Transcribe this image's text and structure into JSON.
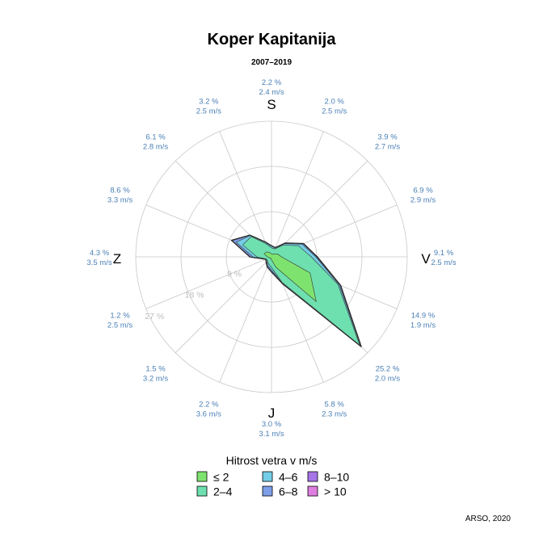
{
  "chart_data": {
    "type": "wind-rose",
    "title": "Koper Kapitanija",
    "subtitle": "2007–2019",
    "cardinals": {
      "north": "S",
      "east": "V",
      "south": "J",
      "west": "Z"
    },
    "ring_labels": [
      "9 %",
      "18 %",
      "27 %"
    ],
    "rings": [
      9,
      18,
      27
    ],
    "max": 27,
    "directions": [
      {
        "angle": 0,
        "freq": 2.2,
        "speed": 2.4,
        "pct": "2.2 %",
        "spd": "2.4 m/s"
      },
      {
        "angle": 22.5,
        "freq": 2.0,
        "speed": 2.5,
        "pct": "2.0 %",
        "spd": "2.5 m/s"
      },
      {
        "angle": 45,
        "freq": 3.9,
        "speed": 2.7,
        "pct": "3.9 %",
        "spd": "2.7 m/s"
      },
      {
        "angle": 67.5,
        "freq": 6.9,
        "speed": 2.9,
        "pct": "6.9 %",
        "spd": "2.9 m/s"
      },
      {
        "angle": 90,
        "freq": 9.1,
        "speed": 2.5,
        "pct": "9.1 %",
        "spd": "2.5 m/s"
      },
      {
        "angle": 112.5,
        "freq": 14.9,
        "speed": 1.9,
        "pct": "14.9 %",
        "spd": "1.9 m/s"
      },
      {
        "angle": 135,
        "freq": 25.2,
        "speed": 2.0,
        "pct": "25.2 %",
        "spd": "2.0 m/s"
      },
      {
        "angle": 157.5,
        "freq": 5.8,
        "speed": 2.3,
        "pct": "5.8 %",
        "spd": "2.3 m/s"
      },
      {
        "angle": 180,
        "freq": 3.0,
        "speed": 3.1,
        "pct": "3.0 %",
        "spd": "3.1 m/s"
      },
      {
        "angle": 202.5,
        "freq": 2.2,
        "speed": 3.6,
        "pct": "2.2 %",
        "spd": "3.6 m/s"
      },
      {
        "angle": 225,
        "freq": 1.5,
        "speed": 3.2,
        "pct": "1.5 %",
        "spd": "3.2 m/s"
      },
      {
        "angle": 247.5,
        "freq": 1.2,
        "speed": 2.5,
        "pct": "1.2 %",
        "spd": "2.5 m/s"
      },
      {
        "angle": 270,
        "freq": 4.3,
        "speed": 3.5,
        "pct": "4.3 %",
        "spd": "3.5 m/s"
      },
      {
        "angle": 292.5,
        "freq": 8.6,
        "speed": 3.3,
        "pct": "8.6 %",
        "spd": "3.3 m/s"
      },
      {
        "angle": 315,
        "freq": 6.1,
        "speed": 2.8,
        "pct": "6.1 %",
        "spd": "2.8 m/s"
      },
      {
        "angle": 337.5,
        "freq": 3.2,
        "speed": 2.5,
        "pct": "3.2 %",
        "spd": "2.5 m/s"
      }
    ],
    "series": [
      {
        "name": "≤ 2",
        "color": "#7ee36e",
        "values": [
          0.6,
          0.6,
          0.8,
          1.4,
          2.0,
          8.3,
          12.6,
          2.2,
          0.6,
          0.3,
          0.4,
          0.4,
          0.8,
          1.6,
          1.4,
          0.9
        ]
      },
      {
        "name": "2–4",
        "color": "#6ee0b0",
        "values": [
          1.2,
          1.1,
          2.5,
          4.4,
          5.9,
          6.0,
          12.2,
          3.3,
          1.5,
          1.2,
          0.7,
          0.7,
          2.1,
          4.6,
          4.3,
          1.9
        ]
      },
      {
        "name": "4–6",
        "color": "#74cde6",
        "values": [
          0.3,
          0.2,
          0.4,
          0.8,
          0.9,
          0.3,
          0.3,
          0.2,
          0.5,
          0.4,
          0.2,
          0.1,
          0.8,
          1.4,
          0.3,
          0.3
        ]
      },
      {
        "name": "6–8",
        "color": "#7e9ee8",
        "values": [
          0.08,
          0.06,
          0.15,
          0.22,
          0.22,
          0.2,
          0.07,
          0.07,
          0.3,
          0.22,
          0.15,
          0.0,
          0.5,
          0.82,
          0.07,
          0.07
        ]
      },
      {
        "name": "8–10",
        "color": "#a675e8",
        "values": [
          0.01,
          0.01,
          0.02,
          0.05,
          0.05,
          0.05,
          0.02,
          0.02,
          0.06,
          0.05,
          0.04,
          0.0,
          0.07,
          0.13,
          0.02,
          0.02
        ]
      },
      {
        "name": "> 10",
        "color": "#e07ee0",
        "values": [
          0.01,
          0.01,
          0.01,
          0.02,
          0.02,
          0.02,
          0.01,
          0.01,
          0.03,
          0.02,
          0.01,
          0.0,
          0.02,
          0.05,
          0.01,
          0.01
        ]
      }
    ],
    "legend_title": "Hitrost vetra v m/s",
    "legend_position": "bottom"
  },
  "credit": "ARSO, 2020"
}
